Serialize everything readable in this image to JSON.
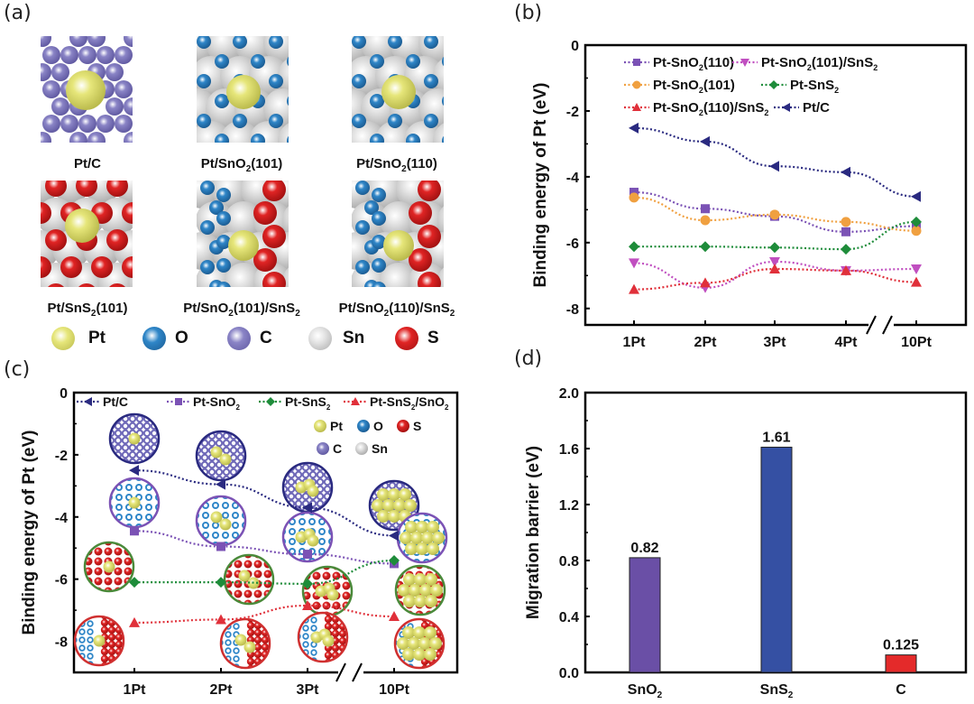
{
  "panels": {
    "a": {
      "label": "(a)",
      "tiles": [
        {
          "name": "Pt/C",
          "label_pre": "Pt/C",
          "sub": "",
          "label_post": ""
        },
        {
          "name": "Pt/SnO2(101)",
          "label_pre": "Pt/SnO",
          "sub": "2",
          "label_post": "(101)"
        },
        {
          "name": "Pt/SnO2(110)",
          "label_pre": "Pt/SnO",
          "sub": "2",
          "label_post": "(110)"
        },
        {
          "name": "Pt/SnS2(101)",
          "label_pre": "Pt/SnS",
          "sub": "2",
          "label_post": "(101)"
        },
        {
          "name": "Pt/SnO2(101)/SnS2",
          "label_pre": "Pt/SnO",
          "sub": "2",
          "label_post": "(101)/SnS",
          "sub2": "2"
        },
        {
          "name": "Pt/SnO2(110)/SnS2",
          "label_pre": "Pt/SnO",
          "sub": "2",
          "label_post": "(110)/SnS",
          "sub2": "2"
        }
      ],
      "atom_legend": [
        {
          "symbol": "Pt",
          "color": "#e6e67a"
        },
        {
          "symbol": "O",
          "color": "#2f86c8"
        },
        {
          "symbol": "C",
          "color": "#8a84c6"
        },
        {
          "symbol": "Sn",
          "color": "#e4e4e4"
        },
        {
          "symbol": "S",
          "color": "#e02424"
        }
      ]
    },
    "b": {
      "label": "(b)"
    },
    "c": {
      "label": "(c)"
    },
    "d": {
      "label": "(d)"
    }
  },
  "chart_data": [
    {
      "id": "b",
      "type": "line",
      "title": "",
      "xlabel": "",
      "ylabel": "Binding energy of Pt (eV)",
      "categories": [
        "1Pt",
        "2Pt",
        "3Pt",
        "4Pt",
        "10Pt"
      ],
      "axis_break_between": [
        "4Pt",
        "10Pt"
      ],
      "ylim": [
        -8.5,
        0
      ],
      "yticks": [
        0,
        -2,
        -4,
        -6,
        -8
      ],
      "ytick_labels": [
        "0",
        "-2",
        "-4",
        "-6",
        "-8"
      ],
      "grid": false,
      "legend_position": "top",
      "series": [
        {
          "name": "Pt-SnO2(110)",
          "label_pre": "Pt-SnO",
          "label_sub": "2",
          "label_post": "(110)",
          "marker": "square",
          "color": "#7b52b5",
          "values": [
            -4.47,
            -4.97,
            -5.2,
            -5.67,
            -5.5
          ]
        },
        {
          "name": "Pt-SnO2(101)/SnS2",
          "label_pre": "Pt-SnO",
          "label_sub": "2",
          "label_post": "(101)/SnS",
          "label_sub2": "2",
          "marker": "triangle-down",
          "color": "#c04fc0",
          "values": [
            -6.62,
            -7.37,
            -6.58,
            -6.85,
            -6.8
          ]
        },
        {
          "name": "Pt-SnO2(101)",
          "label_pre": "Pt-SnO",
          "label_sub": "2",
          "label_post": "(101)",
          "marker": "circle",
          "color": "#f0a040",
          "values": [
            -4.63,
            -5.32,
            -5.15,
            -5.37,
            -5.64
          ]
        },
        {
          "name": "Pt-SnS2",
          "label_pre": "Pt-SnS",
          "label_sub": "2",
          "label_post": "",
          "marker": "diamond",
          "color": "#1e8c3a",
          "values": [
            -6.12,
            -6.12,
            -6.15,
            -6.2,
            -5.37
          ]
        },
        {
          "name": "Pt-SnO2(110)/SnS2",
          "label_pre": "Pt-SnO",
          "label_sub": "2",
          "label_post": "(110)/SnS",
          "label_sub2": "2",
          "marker": "triangle-up",
          "color": "#e0303a",
          "values": [
            -7.42,
            -7.22,
            -6.8,
            -6.85,
            -7.2
          ]
        },
        {
          "name": "Pt/C",
          "label_pre": "Pt/C",
          "label_sub": "",
          "label_post": "",
          "marker": "triangle-left",
          "color": "#2a2a80",
          "values": [
            -2.52,
            -2.93,
            -3.68,
            -3.86,
            -4.6
          ]
        }
      ]
    },
    {
      "id": "c",
      "type": "line",
      "title": "",
      "xlabel": "",
      "ylabel": "Binding energy of Pt (eV)",
      "categories": [
        "1Pt",
        "2Pt",
        "3Pt",
        "10Pt"
      ],
      "axis_break_between": [
        "3Pt",
        "10Pt"
      ],
      "ylim": [
        -9,
        0
      ],
      "yticks": [
        0,
        -2,
        -4,
        -6,
        -8
      ],
      "ytick_labels": [
        "0",
        "-2",
        "-4",
        "-6",
        "-8"
      ],
      "grid": false,
      "legend_position": "top",
      "series": [
        {
          "name": "Pt/C",
          "label_pre": "Pt/C",
          "label_sub": "",
          "label_post": "",
          "marker": "triangle-left",
          "color": "#2a2a80",
          "values": [
            -2.5,
            -2.95,
            -3.7,
            -4.6
          ]
        },
        {
          "name": "Pt-SnO2",
          "label_pre": "Pt-SnO",
          "label_sub": "2",
          "label_post": "",
          "marker": "square",
          "color": "#7b52b5",
          "values": [
            -4.45,
            -4.95,
            -5.2,
            -5.5
          ]
        },
        {
          "name": "Pt-SnS2",
          "label_pre": "Pt-SnS",
          "label_sub": "2",
          "label_post": "",
          "marker": "diamond",
          "color": "#1e8c3a",
          "values": [
            -6.1,
            -6.1,
            -6.15,
            -5.4
          ]
        },
        {
          "name": "Pt-SnS2/SnO2",
          "label_pre": "Pt-SnS",
          "label_sub": "2",
          "label_post": "/SnO",
          "label_sub2": "2",
          "marker": "triangle-up",
          "color": "#e0303a",
          "values": [
            -7.4,
            -7.3,
            -6.85,
            -7.2
          ]
        }
      ],
      "inset_atom_legend": [
        {
          "symbol": "Pt",
          "color": "#e6e67a"
        },
        {
          "symbol": "O",
          "color": "#2f86c8"
        },
        {
          "symbol": "S",
          "color": "#e02424"
        },
        {
          "symbol": "C",
          "color": "#8a84c6"
        },
        {
          "symbol": "Sn",
          "color": "#e4e4e4"
        }
      ],
      "structure_insets": [
        {
          "series": "Pt/C",
          "category": "1Pt",
          "pt_atoms": 1
        },
        {
          "series": "Pt/C",
          "category": "2Pt",
          "pt_atoms": 2
        },
        {
          "series": "Pt/C",
          "category": "3Pt",
          "pt_atoms": 3
        },
        {
          "series": "Pt/C",
          "category": "10Pt",
          "pt_atoms": 10
        },
        {
          "series": "Pt-SnO2",
          "category": "1Pt",
          "pt_atoms": 1
        },
        {
          "series": "Pt-SnO2",
          "category": "2Pt",
          "pt_atoms": 2
        },
        {
          "series": "Pt-SnO2",
          "category": "3Pt",
          "pt_atoms": 3
        },
        {
          "series": "Pt-SnO2",
          "category": "10Pt",
          "pt_atoms": 10
        },
        {
          "series": "Pt-SnS2",
          "category": "1Pt",
          "pt_atoms": 1
        },
        {
          "series": "Pt-SnS2",
          "category": "2Pt",
          "pt_atoms": 2
        },
        {
          "series": "Pt-SnS2",
          "category": "3Pt",
          "pt_atoms": 3
        },
        {
          "series": "Pt-SnS2",
          "category": "10Pt",
          "pt_atoms": 10
        },
        {
          "series": "Pt-SnS2/SnO2",
          "category": "1Pt",
          "pt_atoms": 1
        },
        {
          "series": "Pt-SnS2/SnO2",
          "category": "2Pt",
          "pt_atoms": 2
        },
        {
          "series": "Pt-SnS2/SnO2",
          "category": "3Pt",
          "pt_atoms": 3
        },
        {
          "series": "Pt-SnS2/SnO2",
          "category": "10Pt",
          "pt_atoms": 10
        }
      ]
    },
    {
      "id": "d",
      "type": "bar",
      "title": "",
      "xlabel": "",
      "ylabel": "Migration barrier (eV)",
      "categories": [
        "SnO2",
        "SnS2",
        "C"
      ],
      "category_labels": [
        {
          "pre": "SnO",
          "sub": "2"
        },
        {
          "pre": "SnS",
          "sub": "2"
        },
        {
          "pre": "C",
          "sub": ""
        }
      ],
      "values": [
        0.82,
        1.61,
        0.125
      ],
      "value_labels": [
        "0.82",
        "1.61",
        "0.125"
      ],
      "colors": [
        "#6a4fa6",
        "#3550a3",
        "#e42a2a"
      ],
      "ylim": [
        0,
        2.0
      ],
      "yticks": [
        0.0,
        0.4,
        0.8,
        1.2,
        1.6,
        2.0
      ],
      "ytick_labels": [
        "0.0",
        "0.4",
        "0.8",
        "1.2",
        "1.6",
        "2.0"
      ],
      "grid": false,
      "legend_position": "none"
    }
  ]
}
